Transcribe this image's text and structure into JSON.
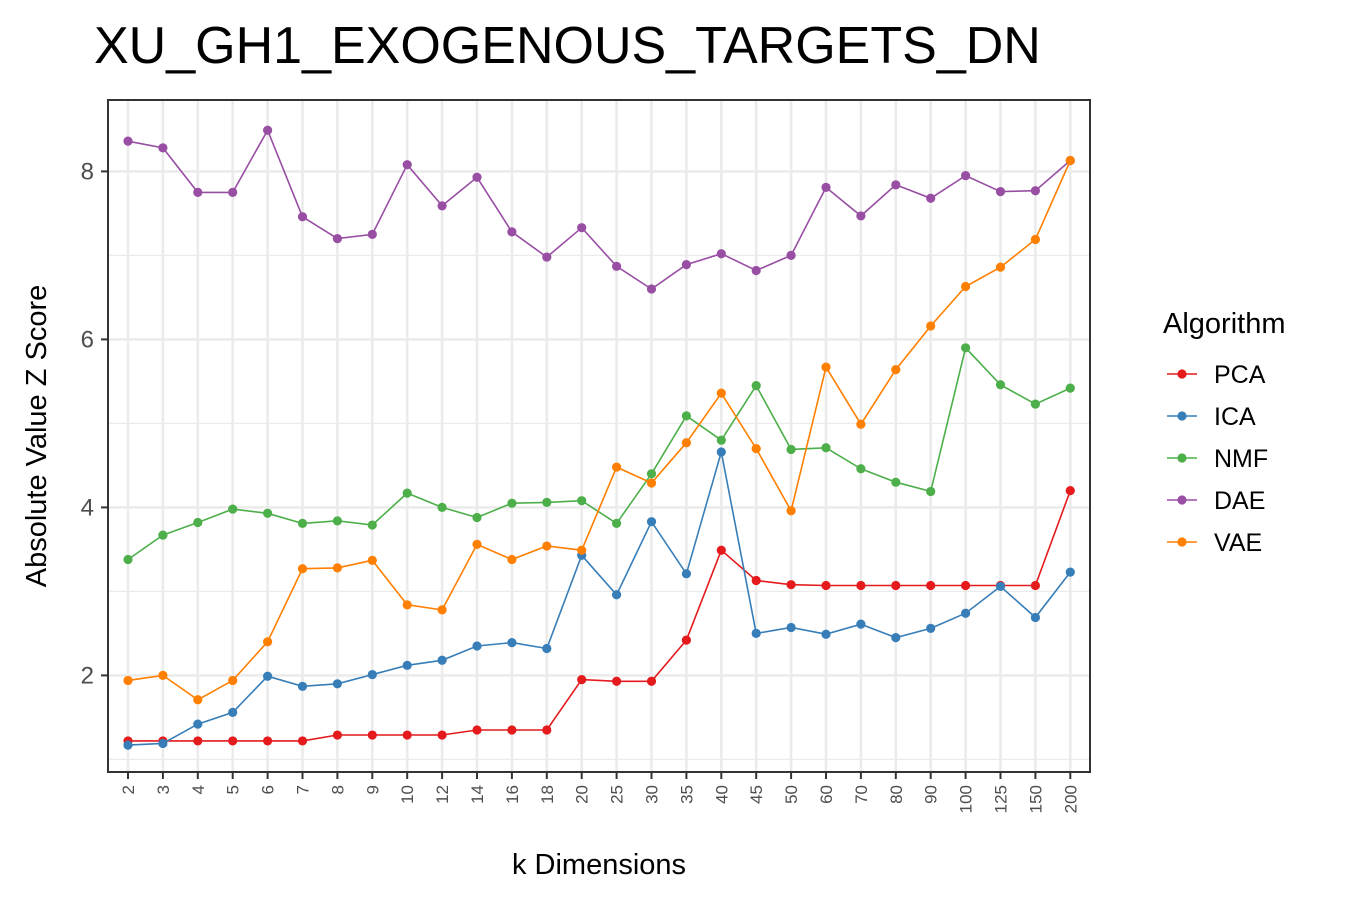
{
  "chart_data": {
    "type": "line",
    "title": "XU_GH1_EXOGENOUS_TARGETS_DN",
    "xlabel": "k Dimensions",
    "ylabel": "Absolute Value Z Score",
    "categories": [
      "2",
      "3",
      "4",
      "5",
      "6",
      "7",
      "8",
      "9",
      "10",
      "12",
      "14",
      "16",
      "18",
      "20",
      "25",
      "30",
      "35",
      "40",
      "45",
      "50",
      "60",
      "70",
      "80",
      "90",
      "100",
      "125",
      "150",
      "200"
    ],
    "ylim": [
      0.85,
      8.85
    ],
    "yticks": [
      2,
      4,
      6,
      8
    ],
    "grid": true,
    "legend": {
      "title": "Algorithm",
      "position": "right"
    },
    "series": [
      {
        "name": "PCA",
        "color": "#e41a1c",
        "values": [
          1.22,
          1.22,
          1.22,
          1.22,
          1.22,
          1.22,
          1.29,
          1.29,
          1.29,
          1.29,
          1.35,
          1.35,
          1.35,
          1.95,
          1.93,
          1.93,
          2.42,
          3.49,
          3.13,
          3.08,
          3.07,
          3.07,
          3.07,
          3.07,
          3.07,
          3.07,
          3.07,
          4.2
        ]
      },
      {
        "name": "ICA",
        "color": "#377eb8",
        "values": [
          1.17,
          1.19,
          1.42,
          1.56,
          1.99,
          1.87,
          1.9,
          2.01,
          2.12,
          2.18,
          2.35,
          2.39,
          2.32,
          3.43,
          2.96,
          3.83,
          3.21,
          4.66,
          2.5,
          2.57,
          2.49,
          2.61,
          2.45,
          2.56,
          2.74,
          3.06,
          2.69,
          3.23
        ]
      },
      {
        "name": "NMF",
        "color": "#4daf4a",
        "values": [
          3.38,
          3.67,
          3.82,
          3.98,
          3.93,
          3.81,
          3.84,
          3.79,
          4.17,
          4.0,
          3.88,
          4.05,
          4.06,
          4.08,
          3.81,
          4.4,
          5.09,
          4.8,
          5.45,
          4.69,
          4.71,
          4.46,
          4.3,
          4.19,
          5.9,
          5.46,
          5.23,
          5.42
        ]
      },
      {
        "name": "DAE",
        "color": "#984ea3",
        "values": [
          8.36,
          8.28,
          7.75,
          7.75,
          8.49,
          7.46,
          7.2,
          7.25,
          8.08,
          7.59,
          7.93,
          7.28,
          6.98,
          7.33,
          6.87,
          6.6,
          6.89,
          7.02,
          6.82,
          7.0,
          7.81,
          7.47,
          7.84,
          7.68,
          7.95,
          7.76,
          7.77,
          8.13
        ]
      },
      {
        "name": "VAE",
        "color": "#ff7f00",
        "values": [
          1.94,
          2.0,
          1.71,
          1.94,
          2.4,
          3.27,
          3.28,
          3.37,
          2.84,
          2.78,
          3.56,
          3.38,
          3.54,
          3.49,
          4.48,
          4.29,
          4.77,
          5.36,
          4.7,
          3.96,
          5.67,
          4.99,
          5.64,
          6.16,
          6.63,
          6.86,
          7.19,
          8.13
        ]
      }
    ]
  }
}
